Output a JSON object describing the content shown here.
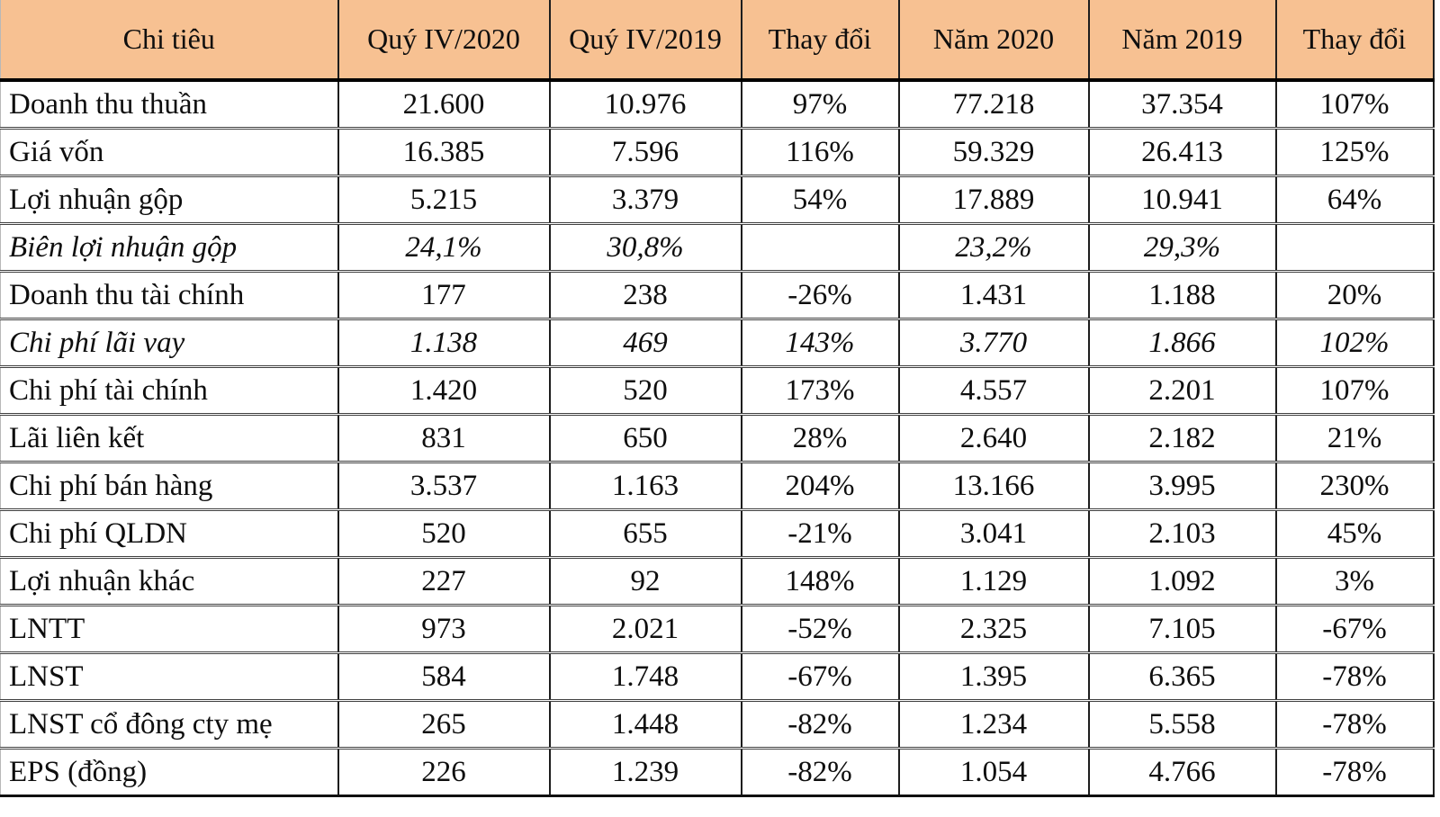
{
  "chart_data": {
    "type": "table",
    "columns": [
      "Chi tiêu",
      "Quý IV/2020",
      "Quý IV/2019",
      "Thay đổi",
      "Năm 2020",
      "Năm 2019",
      "Thay đổi"
    ],
    "rows": [
      {
        "label": "Doanh thu thuần",
        "italic": false,
        "values": [
          "21.600",
          "10.976",
          "97%",
          "77.218",
          "37.354",
          "107%"
        ]
      },
      {
        "label": "Giá vốn",
        "italic": false,
        "values": [
          "16.385",
          "7.596",
          "116%",
          "59.329",
          "26.413",
          "125%"
        ]
      },
      {
        "label": "Lợi nhuận gộp",
        "italic": false,
        "values": [
          "5.215",
          "3.379",
          "54%",
          "17.889",
          "10.941",
          "64%"
        ]
      },
      {
        "label": "Biên lợi nhuận gộp",
        "italic": true,
        "values": [
          "24,1%",
          "30,8%",
          "",
          "23,2%",
          "29,3%",
          ""
        ]
      },
      {
        "label": "Doanh thu tài chính",
        "italic": false,
        "values": [
          "177",
          "238",
          "-26%",
          "1.431",
          "1.188",
          "20%"
        ]
      },
      {
        "label": "Chi phí lãi vay",
        "italic": true,
        "values": [
          "1.138",
          "469",
          "143%",
          "3.770",
          "1.866",
          "102%"
        ]
      },
      {
        "label": "Chi phí tài chính",
        "italic": false,
        "values": [
          "1.420",
          "520",
          "173%",
          "4.557",
          "2.201",
          "107%"
        ]
      },
      {
        "label": "Lãi liên kết",
        "italic": false,
        "values": [
          "831",
          "650",
          "28%",
          "2.640",
          "2.182",
          "21%"
        ]
      },
      {
        "label": "Chi phí bán hàng",
        "italic": false,
        "values": [
          "3.537",
          "1.163",
          "204%",
          "13.166",
          "3.995",
          "230%"
        ]
      },
      {
        "label": "Chi phí QLDN",
        "italic": false,
        "values": [
          "520",
          "655",
          "-21%",
          "3.041",
          "2.103",
          "45%"
        ]
      },
      {
        "label": "Lợi nhuận khác",
        "italic": false,
        "values": [
          "227",
          "92",
          "148%",
          "1.129",
          "1.092",
          "3%"
        ]
      },
      {
        "label": "LNTT",
        "italic": false,
        "values": [
          "973",
          "2.021",
          "-52%",
          "2.325",
          "7.105",
          "-67%"
        ]
      },
      {
        "label": "LNST",
        "italic": false,
        "values": [
          "584",
          "1.748",
          "-67%",
          "1.395",
          "6.365",
          "-78%"
        ]
      },
      {
        "label": "LNST cổ đông cty mẹ",
        "italic": false,
        "values": [
          "265",
          "1.448",
          "-82%",
          "1.234",
          "5.558",
          "-78%"
        ]
      },
      {
        "label": "EPS (đồng)",
        "italic": false,
        "values": [
          "226",
          "1.239",
          "-82%",
          "1.054",
          "4.766",
          "-78%"
        ]
      }
    ]
  },
  "colors": {
    "header_bg": "#f7c192",
    "column_line": "#1d1d1d",
    "row_line": "#404040",
    "text": "#0e0e0e"
  }
}
